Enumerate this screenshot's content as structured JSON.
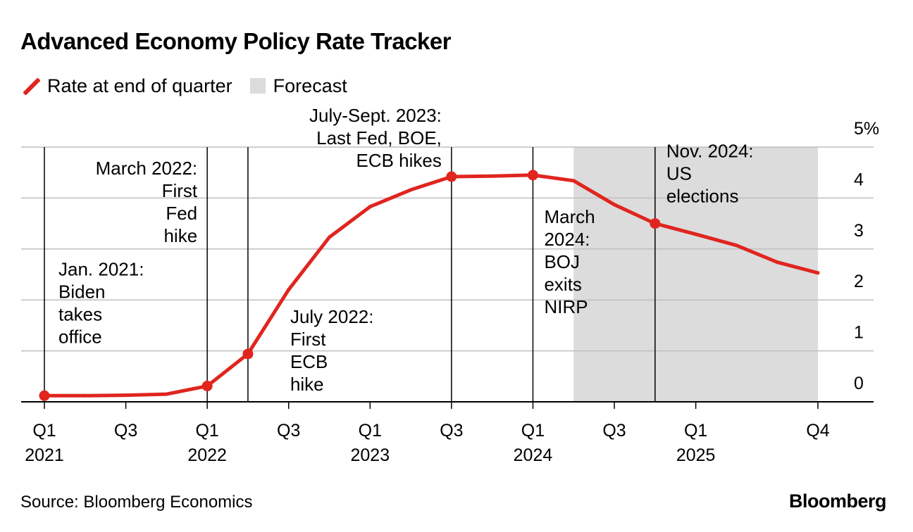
{
  "title": "Advanced Economy Policy Rate Tracker",
  "legend": {
    "line_label": "Rate at end of quarter",
    "forecast_label": "Forecast"
  },
  "source": "Source: Bloomberg Economics",
  "brand": "Bloomberg",
  "colors": {
    "line": "#e0251f",
    "forecast": "#dcdcdc",
    "grid": "#bfbfbf",
    "text": "#000000"
  },
  "chart_data": {
    "type": "line",
    "title": "Advanced Economy Policy Rate Tracker",
    "xlabel": "",
    "ylabel": "",
    "x_range": [
      0,
      19
    ],
    "ylim": [
      0,
      5
    ],
    "y_ticks": [
      {
        "value": 0,
        "label": "0"
      },
      {
        "value": 1,
        "label": "1"
      },
      {
        "value": 2,
        "label": "2"
      },
      {
        "value": 3,
        "label": "3"
      },
      {
        "value": 4,
        "label": "4"
      },
      {
        "value": 5,
        "label": "5%"
      }
    ],
    "x_ticks": [
      {
        "q": 0,
        "label": "Q1",
        "year": "2021"
      },
      {
        "q": 2,
        "label": "Q3",
        "year": ""
      },
      {
        "q": 4,
        "label": "Q1",
        "year": "2022"
      },
      {
        "q": 6,
        "label": "Q3",
        "year": ""
      },
      {
        "q": 8,
        "label": "Q1",
        "year": "2023"
      },
      {
        "q": 10,
        "label": "Q3",
        "year": ""
      },
      {
        "q": 12,
        "label": "Q1",
        "year": "2024"
      },
      {
        "q": 14,
        "label": "Q3",
        "year": ""
      },
      {
        "q": 16,
        "label": "Q1",
        "year": "2025"
      },
      {
        "q": 19,
        "label": "Q4",
        "year": ""
      }
    ],
    "forecast_range": [
      13,
      19
    ],
    "series": [
      {
        "name": "Rate at end of quarter",
        "points": [
          {
            "q": 0,
            "v": 0.12
          },
          {
            "q": 1,
            "v": 0.12
          },
          {
            "q": 2,
            "v": 0.13
          },
          {
            "q": 3,
            "v": 0.15
          },
          {
            "q": 4,
            "v": 0.31
          },
          {
            "q": 5,
            "v": 0.94
          },
          {
            "q": 6,
            "v": 2.2
          },
          {
            "q": 7,
            "v": 3.23
          },
          {
            "q": 8,
            "v": 3.83
          },
          {
            "q": 9,
            "v": 4.16
          },
          {
            "q": 10,
            "v": 4.42
          },
          {
            "q": 11,
            "v": 4.43
          },
          {
            "q": 12,
            "v": 4.45
          },
          {
            "q": 13,
            "v": 4.34
          },
          {
            "q": 14,
            "v": 3.87
          },
          {
            "q": 15,
            "v": 3.5
          },
          {
            "q": 16,
            "v": 3.29
          },
          {
            "q": 17,
            "v": 3.07
          },
          {
            "q": 18,
            "v": 2.74
          },
          {
            "q": 19,
            "v": 2.53
          }
        ]
      }
    ],
    "markers": [
      0,
      4,
      5,
      10,
      12,
      15
    ],
    "events": [
      {
        "q": 0,
        "lines": [
          "Jan. 2021:",
          "Biden",
          "takes",
          "office"
        ],
        "anchor": "start",
        "dx": 20,
        "baseline_value": 2.48,
        "line_top_value": 5
      },
      {
        "q": 4,
        "lines": [
          "March 2022:",
          "First",
          "Fed",
          "hike"
        ],
        "anchor": "end",
        "dx": -14,
        "baseline_value": 4.46,
        "line_top_value": 5
      },
      {
        "q": 5,
        "lines": [
          "July 2022:",
          "First",
          "ECB",
          "hike"
        ],
        "anchor": "start",
        "dx": 60,
        "baseline_value": 1.55,
        "line_top_value": 5
      },
      {
        "q": 10,
        "lines": [
          "July-Sept. 2023:",
          "Last Fed, BOE,",
          "ECB hikes"
        ],
        "anchor": "end",
        "dx": -14,
        "baseline_value": 5.5,
        "line_top_value": 5
      },
      {
        "q": 12,
        "lines": [
          "March",
          "2024:",
          "BOJ",
          "exits",
          "NIRP"
        ],
        "anchor": "start",
        "dx": 16,
        "baseline_value": 3.51,
        "line_top_value": 5
      },
      {
        "q": 15,
        "lines": [
          "Nov. 2024:",
          "US",
          "elections"
        ],
        "anchor": "start",
        "dx": 16,
        "baseline_value": 4.8,
        "line_top_value": 5
      }
    ]
  }
}
